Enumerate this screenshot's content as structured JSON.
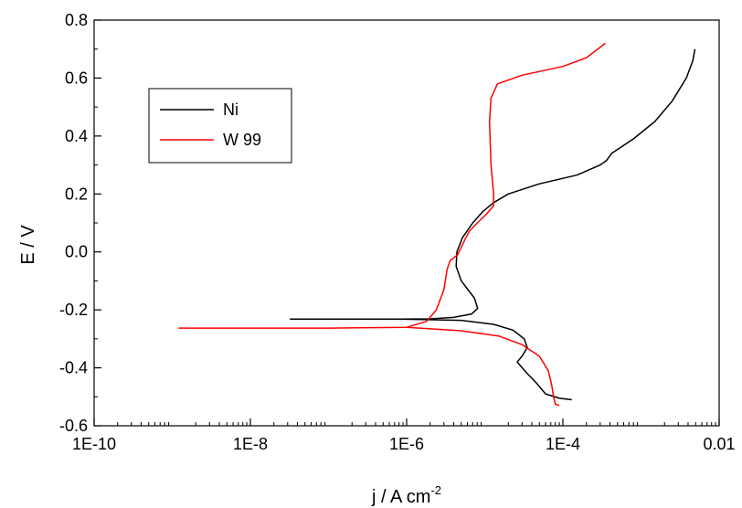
{
  "chart_data": {
    "type": "line",
    "xlabel": "j / A cm",
    "xlabel_superscript": "-2",
    "ylabel": "E / V",
    "x_scale": "log",
    "xlim": [
      1e-10,
      0.01
    ],
    "ylim": [
      -0.6,
      0.8
    ],
    "x_ticks": [
      1e-10,
      1e-08,
      1e-06,
      0.0001,
      0.01
    ],
    "x_tick_labels": [
      "1E-10",
      "1E-8",
      "1E-6",
      "1E-4",
      "0.01"
    ],
    "y_ticks": [
      -0.6,
      -0.4,
      -0.2,
      0.0,
      0.2,
      0.4,
      0.6,
      0.8
    ],
    "y_tick_labels": [
      "-0.6",
      "-0.4",
      "-0.2",
      "0.0",
      "0.2",
      "0.4",
      "0.6",
      "0.8"
    ],
    "grid": false,
    "legend_position": "top-left",
    "series": [
      {
        "name": "Ni",
        "color": "#000000",
        "points": [
          [
            3.2e-08,
            -0.232
          ],
          [
            2e-07,
            -0.232
          ],
          [
            8e-07,
            -0.232
          ],
          [
            2e-06,
            -0.231
          ],
          [
            4e-06,
            -0.226
          ],
          [
            6.8e-06,
            -0.214
          ],
          [
            8.1e-06,
            -0.195
          ],
          [
            7.4e-06,
            -0.16
          ],
          [
            5e-06,
            -0.1
          ],
          [
            4.3e-06,
            -0.05
          ],
          [
            4.4e-06,
            0.0
          ],
          [
            5.2e-06,
            0.05
          ],
          [
            7e-06,
            0.1
          ],
          [
            9.5e-06,
            0.14
          ],
          [
            1.3e-05,
            0.17
          ],
          [
            2e-05,
            0.2
          ],
          [
            5e-05,
            0.235
          ],
          [
            0.00015,
            0.265
          ],
          [
            0.0003,
            0.3
          ],
          [
            0.00036,
            0.315
          ],
          [
            0.00042,
            0.34
          ],
          [
            0.0008,
            0.39
          ],
          [
            0.0015,
            0.45
          ],
          [
            0.0025,
            0.52
          ],
          [
            0.0038,
            0.6
          ],
          [
            0.0046,
            0.66
          ],
          [
            0.0049,
            0.7
          ]
        ],
        "branch": [
          [
            8e-07,
            -0.232
          ],
          [
            5e-06,
            -0.236
          ],
          [
            1.3e-05,
            -0.25
          ],
          [
            2.3e-05,
            -0.27
          ],
          [
            3.2e-05,
            -0.3
          ],
          [
            3.5e-05,
            -0.33
          ],
          [
            3e-05,
            -0.36
          ],
          [
            2.6e-05,
            -0.38
          ],
          [
            3.5e-05,
            -0.42
          ],
          [
            4.5e-05,
            -0.45
          ],
          [
            6e-05,
            -0.49
          ],
          [
            9e-05,
            -0.505
          ],
          [
            0.00013,
            -0.51
          ]
        ]
      },
      {
        "name": "W 99",
        "color": "#ff0000",
        "points": [
          [
            1.2e-09,
            -0.263
          ],
          [
            1e-07,
            -0.263
          ],
          [
            1e-06,
            -0.26
          ],
          [
            1.8e-06,
            -0.24
          ],
          [
            2.4e-06,
            -0.2
          ],
          [
            3e-06,
            -0.13
          ],
          [
            3.3e-06,
            -0.06
          ],
          [
            3.6e-06,
            -0.03
          ],
          [
            4.5e-06,
            -0.01
          ],
          [
            5.3e-06,
            0.03
          ],
          [
            6.3e-06,
            0.07
          ],
          [
            8e-06,
            0.1
          ],
          [
            1.05e-05,
            0.13
          ],
          [
            1.3e-05,
            0.16
          ],
          [
            1.3e-05,
            0.2
          ],
          [
            1.2e-05,
            0.3
          ],
          [
            1.15e-05,
            0.45
          ],
          [
            1.2e-05,
            0.53
          ],
          [
            1.45e-05,
            0.58
          ],
          [
            3e-05,
            0.61
          ],
          [
            0.0001,
            0.64
          ],
          [
            0.0002,
            0.67
          ],
          [
            0.00035,
            0.72
          ]
        ],
        "branch": [
          [
            1e-06,
            -0.26
          ],
          [
            5e-06,
            -0.272
          ],
          [
            1.5e-05,
            -0.29
          ],
          [
            3e-05,
            -0.32
          ],
          [
            5e-05,
            -0.36
          ],
          [
            6.5e-05,
            -0.41
          ],
          [
            7.2e-05,
            -0.46
          ],
          [
            7.6e-05,
            -0.5
          ],
          [
            8e-05,
            -0.525
          ],
          [
            9e-05,
            -0.53
          ]
        ]
      }
    ]
  }
}
